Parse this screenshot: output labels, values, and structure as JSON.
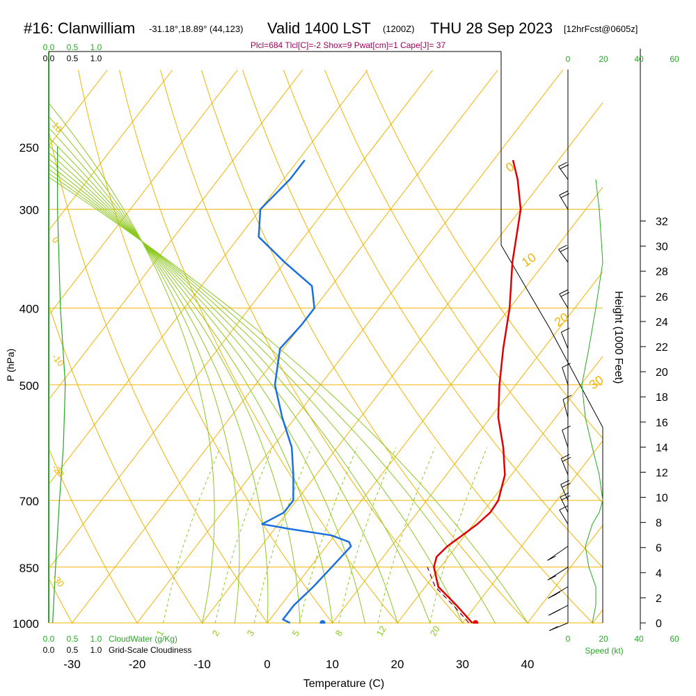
{
  "header": {
    "station": "#16: Clanwilliam",
    "coords": "-31.18°,18.89° (44,123)",
    "valid": "Valid 1400 LST",
    "utc": "(1200Z)",
    "date": "THU 28 Sep 2023",
    "forecast": "[12hrFcst@0605z]",
    "indices": "Plcl=684 Tlcl[C]=-2 Shox=9 Pwat[cm]=1 Cape[J]= 37"
  },
  "colors": {
    "temperature": "#e00000",
    "dewpoint": "#1a6fe0",
    "isotherm": "#f0b400",
    "dry_adiabat": "#f0b400",
    "moist_adiabat": "#8cc820",
    "mixing_ratio": "#8cc820",
    "cloud": "#22aa22",
    "indices": "#a0005a"
  },
  "chart_data": {
    "type": "skew-t",
    "xlabel": "Temperature (C)",
    "ylabel": "P (hPa)",
    "ylabel_right": "Height (1000 Feet)",
    "x_ticks": [
      -30,
      -20,
      -10,
      0,
      10,
      20,
      30,
      40
    ],
    "x_tick_labels": [
      "-30",
      "-20",
      "-10",
      "0",
      "10",
      "20",
      "30",
      "40"
    ],
    "p_ticks": [
      1000,
      850,
      700,
      500,
      400,
      300,
      250
    ],
    "p_tick_labels": [
      "1000",
      "850",
      "700",
      "500",
      "400",
      "300",
      "250"
    ],
    "height_ticks": [
      0,
      2,
      4,
      6,
      8,
      10,
      12,
      14,
      16,
      18,
      20,
      22,
      24,
      26,
      28,
      30,
      32
    ],
    "height_tick_labels": [
      "0",
      "2",
      "4",
      "6",
      "8",
      "10",
      "12",
      "14",
      "16",
      "18",
      "20",
      "22",
      "24",
      "26",
      "28",
      "30",
      "32"
    ],
    "dry_adiabat_labels": [
      "-20",
      "-10",
      "0",
      "10",
      "20",
      "30"
    ],
    "isotherm_labels": [
      "10",
      "0",
      "-10",
      "-20",
      "-30"
    ],
    "mixing_ratio_labels": [
      "1",
      "2",
      "3",
      "5",
      "8",
      "12",
      "20"
    ],
    "cloud_scale_top": [
      "0.0",
      "0.5",
      "1.0"
    ],
    "cloud_scale_top_black": [
      "0.0",
      "0.5",
      "1.0"
    ],
    "cloud_scale_bottom": [
      "0.0",
      "0.5",
      "1.0"
    ],
    "cloud_scale_bottom_black": [
      "0.0",
      "0.5",
      "1.0"
    ],
    "cloudwater_label": "CloudWater (g/Kg)",
    "cloudiness_label": "Grid-Scale Cloudiness",
    "speed_label": "Speed (kt)",
    "speed_ticks": [
      "0",
      "20",
      "40",
      "60"
    ],
    "temperature_series": {
      "name": "Temperature",
      "points": [
        [
          1000,
          31.5
        ],
        [
          950,
          27.0
        ],
        [
          900,
          22.0
        ],
        [
          850,
          19.0
        ],
        [
          825,
          18.2
        ],
        [
          800,
          18.6
        ],
        [
          775,
          19.6
        ],
        [
          750,
          20.6
        ],
        [
          725,
          21.2
        ],
        [
          700,
          21.0
        ],
        [
          650,
          19.0
        ],
        [
          600,
          15.5
        ],
        [
          550,
          11.2
        ],
        [
          500,
          7.5
        ],
        [
          450,
          3.8
        ],
        [
          400,
          0.0
        ],
        [
          350,
          -5.0
        ],
        [
          300,
          -10.0
        ],
        [
          275,
          -14.0
        ],
        [
          260,
          -17.0
        ]
      ]
    },
    "dewpoint_series": {
      "name": "Dewpoint",
      "points": [
        [
          1000,
          3.5
        ],
        [
          990,
          2.0
        ],
        [
          950,
          2.0
        ],
        [
          900,
          2.8
        ],
        [
          850,
          3.3
        ],
        [
          800,
          3.8
        ],
        [
          790,
          3.0
        ],
        [
          775,
          -0.5
        ],
        [
          760,
          -8.0
        ],
        [
          750,
          -12.5
        ],
        [
          725,
          -10.5
        ],
        [
          700,
          -10.5
        ],
        [
          650,
          -13.5
        ],
        [
          600,
          -17.0
        ],
        [
          550,
          -22.0
        ],
        [
          500,
          -27.0
        ],
        [
          450,
          -30.5
        ],
        [
          420,
          -30.0
        ],
        [
          400,
          -30.0
        ],
        [
          375,
          -33.0
        ],
        [
          350,
          -40.0
        ],
        [
          325,
          -47.0
        ],
        [
          300,
          -50.0
        ],
        [
          275,
          -49.0
        ],
        [
          260,
          -49.0
        ]
      ]
    },
    "parcel_series": {
      "name": "Parcel",
      "points": [
        [
          1000,
          31.0
        ],
        [
          950,
          26.5
        ],
        [
          900,
          21.5
        ],
        [
          850,
          18.0
        ]
      ]
    },
    "surface_temperature": 32.0,
    "surface_dewpoint": 8.5,
    "cloud_water_profile": [
      [
        1000,
        0.04
      ],
      [
        850,
        0.07
      ],
      [
        700,
        0.11
      ],
      [
        600,
        0.15
      ],
      [
        500,
        0.17
      ],
      [
        400,
        0.12
      ],
      [
        300,
        0.09
      ],
      [
        250,
        0.09
      ]
    ],
    "wind_profile": [
      [
        1000,
        14,
        135
      ],
      [
        950,
        16,
        120
      ],
      [
        900,
        16,
        110
      ],
      [
        850,
        12,
        100
      ],
      [
        800,
        10,
        90
      ],
      [
        750,
        14,
        270
      ],
      [
        725,
        18,
        280
      ],
      [
        700,
        20,
        285
      ],
      [
        650,
        18,
        290
      ],
      [
        600,
        14,
        300
      ],
      [
        550,
        10,
        310
      ],
      [
        500,
        8,
        300
      ],
      [
        450,
        12,
        290
      ],
      [
        400,
        16,
        270
      ],
      [
        350,
        20,
        260
      ],
      [
        300,
        18,
        270
      ],
      [
        275,
        16,
        260
      ]
    ]
  }
}
